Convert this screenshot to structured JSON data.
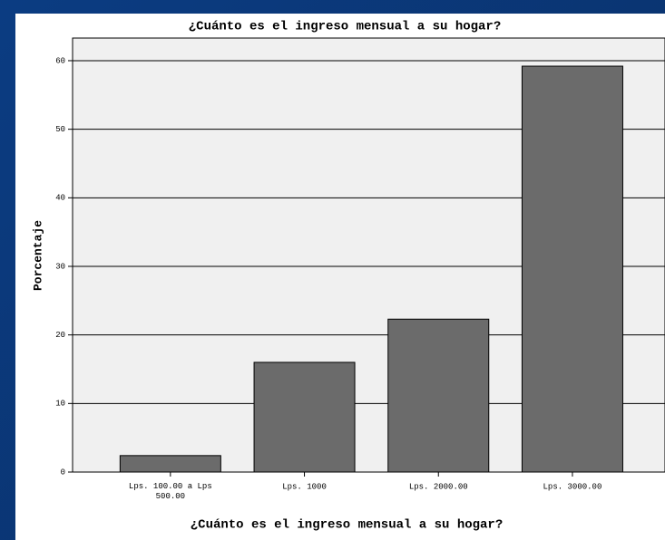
{
  "chart_data": {
    "type": "bar",
    "title": "¿Cuánto es el ingreso mensual a su hogar?",
    "x_label": "¿Cuánto es el ingreso mensual a su hogar?",
    "y_label": "Porcentaje",
    "categories": [
      "Lps. 100.00 a Lps 500.00",
      "Lps. 1000",
      "Lps. 2000.00",
      "Lps. 3000.00"
    ],
    "values": [
      2.4,
      16.0,
      22.3,
      59.2
    ],
    "color": "#6b6b6b",
    "ylim": [
      0,
      63.3
    ],
    "yticks": [
      0,
      10,
      20,
      30,
      40,
      50,
      60
    ],
    "grid": true
  }
}
